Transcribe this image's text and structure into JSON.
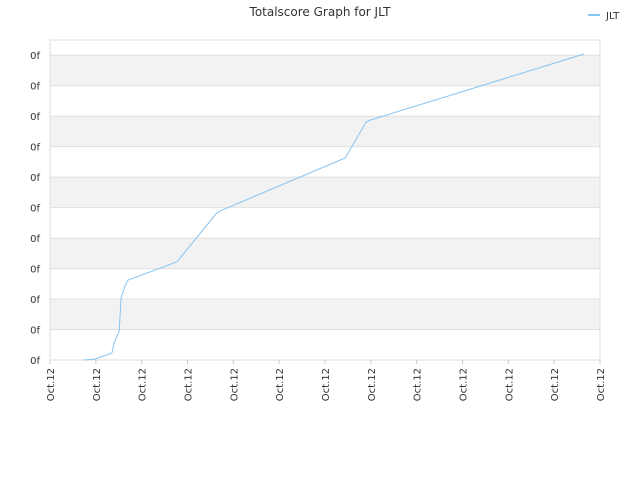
{
  "chart_data": {
    "type": "line",
    "title": "Totalscore Graph for JLT",
    "x": [
      0.74,
      0.98,
      1.35,
      1.4,
      1.51,
      1.55,
      1.64,
      1.7,
      2.77,
      3.62,
      3.71,
      6.44,
      6.9,
      6.98,
      11.65
    ],
    "series": [
      {
        "name": "JLT",
        "color": "#88c4f0",
        "values": [
          0,
          0.03,
          0.23,
          0.56,
          0.95,
          2.03,
          2.46,
          2.62,
          3.22,
          4.79,
          4.89,
          6.63,
          7.81,
          7.87,
          10.04
        ]
      }
    ],
    "xlim": [
      0,
      12
    ],
    "xticks": [
      {
        "value": 0,
        "label": "Oct.12"
      },
      {
        "value": 1,
        "label": "Oct.12"
      },
      {
        "value": 2,
        "label": "Oct.12"
      },
      {
        "value": 3,
        "label": "Oct.12"
      },
      {
        "value": 4,
        "label": "Oct.12"
      },
      {
        "value": 5,
        "label": "Oct.12"
      },
      {
        "value": 6,
        "label": "Oct.12"
      },
      {
        "value": 7,
        "label": "Oct.12"
      },
      {
        "value": 8,
        "label": "Oct.12"
      },
      {
        "value": 9,
        "label": "Oct.12"
      },
      {
        "value": 10,
        "label": "Oct.12"
      },
      {
        "value": 11,
        "label": "Oct.12"
      },
      {
        "value": 12,
        "label": "Oct.12"
      }
    ],
    "ylim": [
      0,
      10.5
    ],
    "yticks": [
      {
        "value": 0,
        "label": "0f"
      },
      {
        "value": 1,
        "label": "0f"
      },
      {
        "value": 2,
        "label": "0f"
      },
      {
        "value": 3,
        "label": "0f"
      },
      {
        "value": 4,
        "label": "0f"
      },
      {
        "value": 5,
        "label": "0f"
      },
      {
        "value": 6,
        "label": "0f"
      },
      {
        "value": 7,
        "label": "0f"
      },
      {
        "value": 8,
        "label": "0f"
      },
      {
        "value": 9,
        "label": "0f"
      },
      {
        "value": 10,
        "label": "0f"
      }
    ],
    "grid": true,
    "legend": "top-right"
  }
}
